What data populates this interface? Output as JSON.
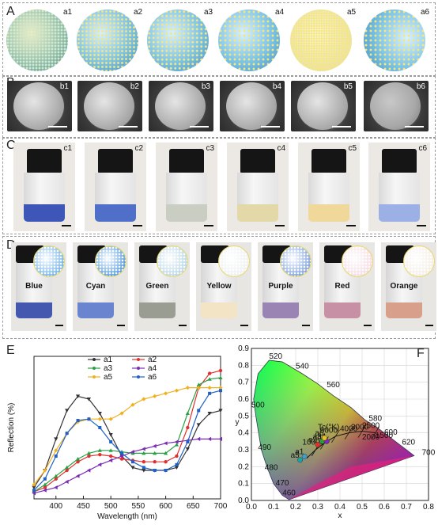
{
  "panels": {
    "A": {
      "label": "A",
      "items": [
        "a1",
        "a2",
        "a3",
        "a4",
        "a5",
        "a6"
      ]
    },
    "B": {
      "label": "B",
      "items": [
        "b1",
        "b2",
        "b3",
        "b4",
        "b5",
        "b6"
      ]
    },
    "C": {
      "label": "C",
      "items": [
        "c1",
        "c2",
        "c3",
        "c4",
        "c5",
        "c6"
      ]
    },
    "D": {
      "label": "D",
      "colors": [
        "Blue",
        "Cyan",
        "Green",
        "Yellow",
        "Purple",
        "Red",
        "Orange"
      ]
    },
    "E": {
      "label": "E"
    },
    "F": {
      "label": "F"
    }
  },
  "colors": {
    "c_liquids": [
      "#3d56b8",
      "#4f6fc8",
      "#c9cdc2",
      "#e3d9a8",
      "#f0d89a",
      "#9cb0e6"
    ],
    "d_liquids": [
      "#4458b0",
      "#6a84d0",
      "#9a9d92",
      "#f2e4c4",
      "#9a84b4",
      "#c890a4",
      "#d8a08a"
    ],
    "d_spheres": [
      "#7ab8e8",
      "#5fa0de",
      "#bcd8e8",
      "#eef0f2",
      "#86a8e0",
      "#f6dde4",
      "#f4eee6"
    ]
  },
  "chart_data": [
    {
      "type": "line",
      "xlabel": "Wavelength (nm)",
      "ylabel": "Reflection (%)",
      "xlim": [
        360,
        700
      ],
      "xticks": [
        400,
        450,
        500,
        550,
        600,
        650,
        700
      ],
      "legend_position": "top-center",
      "grid": false,
      "series": [
        {
          "name": "a1",
          "color": "#333333",
          "marker": "triangle-down",
          "x": [
            360,
            380,
            400,
            420,
            440,
            460,
            480,
            500,
            520,
            540,
            560,
            580,
            600,
            620,
            640,
            660,
            680,
            700
          ],
          "y": [
            0.08,
            0.2,
            0.42,
            0.62,
            0.72,
            0.7,
            0.6,
            0.45,
            0.3,
            0.22,
            0.2,
            0.2,
            0.2,
            0.22,
            0.35,
            0.52,
            0.6,
            0.62
          ]
        },
        {
          "name": "a2",
          "color": "#e03030",
          "marker": "circle",
          "x": [
            360,
            380,
            400,
            420,
            440,
            460,
            480,
            500,
            520,
            540,
            560,
            580,
            600,
            620,
            640,
            660,
            680,
            700
          ],
          "y": [
            0.05,
            0.08,
            0.14,
            0.2,
            0.26,
            0.3,
            0.31,
            0.3,
            0.28,
            0.27,
            0.26,
            0.26,
            0.26,
            0.3,
            0.5,
            0.78,
            0.88,
            0.9
          ]
        },
        {
          "name": "a3",
          "color": "#2aa044",
          "marker": "triangle-up",
          "x": [
            360,
            380,
            400,
            420,
            440,
            460,
            480,
            500,
            520,
            540,
            560,
            580,
            600,
            620,
            640,
            660,
            680,
            700
          ],
          "y": [
            0.05,
            0.1,
            0.16,
            0.22,
            0.28,
            0.32,
            0.34,
            0.34,
            0.33,
            0.32,
            0.32,
            0.32,
            0.32,
            0.38,
            0.6,
            0.8,
            0.84,
            0.85
          ]
        },
        {
          "name": "a4",
          "color": "#7a2ab8",
          "marker": "triangle-left",
          "x": [
            360,
            380,
            400,
            420,
            440,
            460,
            480,
            500,
            520,
            540,
            560,
            580,
            600,
            620,
            640,
            660,
            680,
            700
          ],
          "y": [
            0.04,
            0.06,
            0.08,
            0.12,
            0.16,
            0.2,
            0.24,
            0.27,
            0.3,
            0.33,
            0.35,
            0.37,
            0.39,
            0.4,
            0.41,
            0.42,
            0.42,
            0.42
          ]
        },
        {
          "name": "a5",
          "color": "#f0b020",
          "marker": "diamond",
          "x": [
            360,
            380,
            400,
            420,
            440,
            460,
            480,
            500,
            520,
            540,
            560,
            580,
            600,
            620,
            640,
            660,
            680,
            700
          ],
          "y": [
            0.1,
            0.2,
            0.34,
            0.46,
            0.54,
            0.56,
            0.56,
            0.56,
            0.6,
            0.66,
            0.7,
            0.72,
            0.74,
            0.76,
            0.78,
            0.78,
            0.78,
            0.78
          ]
        },
        {
          "name": "a6",
          "color": "#2060c8",
          "marker": "square",
          "x": [
            360,
            380,
            400,
            420,
            440,
            460,
            480,
            500,
            520,
            540,
            560,
            580,
            600,
            620,
            640,
            660,
            680,
            700
          ],
          "y": [
            0.06,
            0.14,
            0.3,
            0.46,
            0.55,
            0.56,
            0.5,
            0.4,
            0.32,
            0.26,
            0.22,
            0.2,
            0.2,
            0.24,
            0.4,
            0.62,
            0.74,
            0.76
          ]
        }
      ]
    },
    {
      "type": "scatter",
      "xlabel": "x",
      "ylabel": "y",
      "xlim": [
        0.0,
        0.8
      ],
      "ylim": [
        0.0,
        0.9
      ],
      "xticks": [
        0.0,
        0.1,
        0.2,
        0.3,
        0.4,
        0.5,
        0.6,
        0.7,
        0.8
      ],
      "yticks": [
        0.0,
        0.1,
        0.2,
        0.3,
        0.4,
        0.5,
        0.6,
        0.7,
        0.8,
        0.9
      ],
      "locus_labels": [
        "520",
        "540",
        "560",
        "580",
        "600",
        "620",
        "700",
        "500",
        "490",
        "480",
        "470",
        "460"
      ],
      "cct_labels": [
        "Tc(°K)",
        "6000",
        "4000",
        "3000",
        "2500",
        "10000",
        "2000",
        "1500"
      ],
      "cct_title": "Tc(°K)",
      "points": [
        {
          "name": "a1",
          "x": 0.24,
          "y": 0.26,
          "color": "#3aa0d0"
        },
        {
          "name": "a2",
          "x": 0.3,
          "y": 0.33,
          "color": "#e03030"
        },
        {
          "name": "a3",
          "x": 0.32,
          "y": 0.35,
          "color": "#2aa044"
        },
        {
          "name": "a4",
          "x": 0.34,
          "y": 0.35,
          "color": "#7a2ab8"
        },
        {
          "name": "a5",
          "x": 0.22,
          "y": 0.24,
          "color": "#1aa4a8"
        },
        {
          "name": "a6",
          "x": 0.33,
          "y": 0.37,
          "color": "#e8c020"
        }
      ]
    }
  ]
}
